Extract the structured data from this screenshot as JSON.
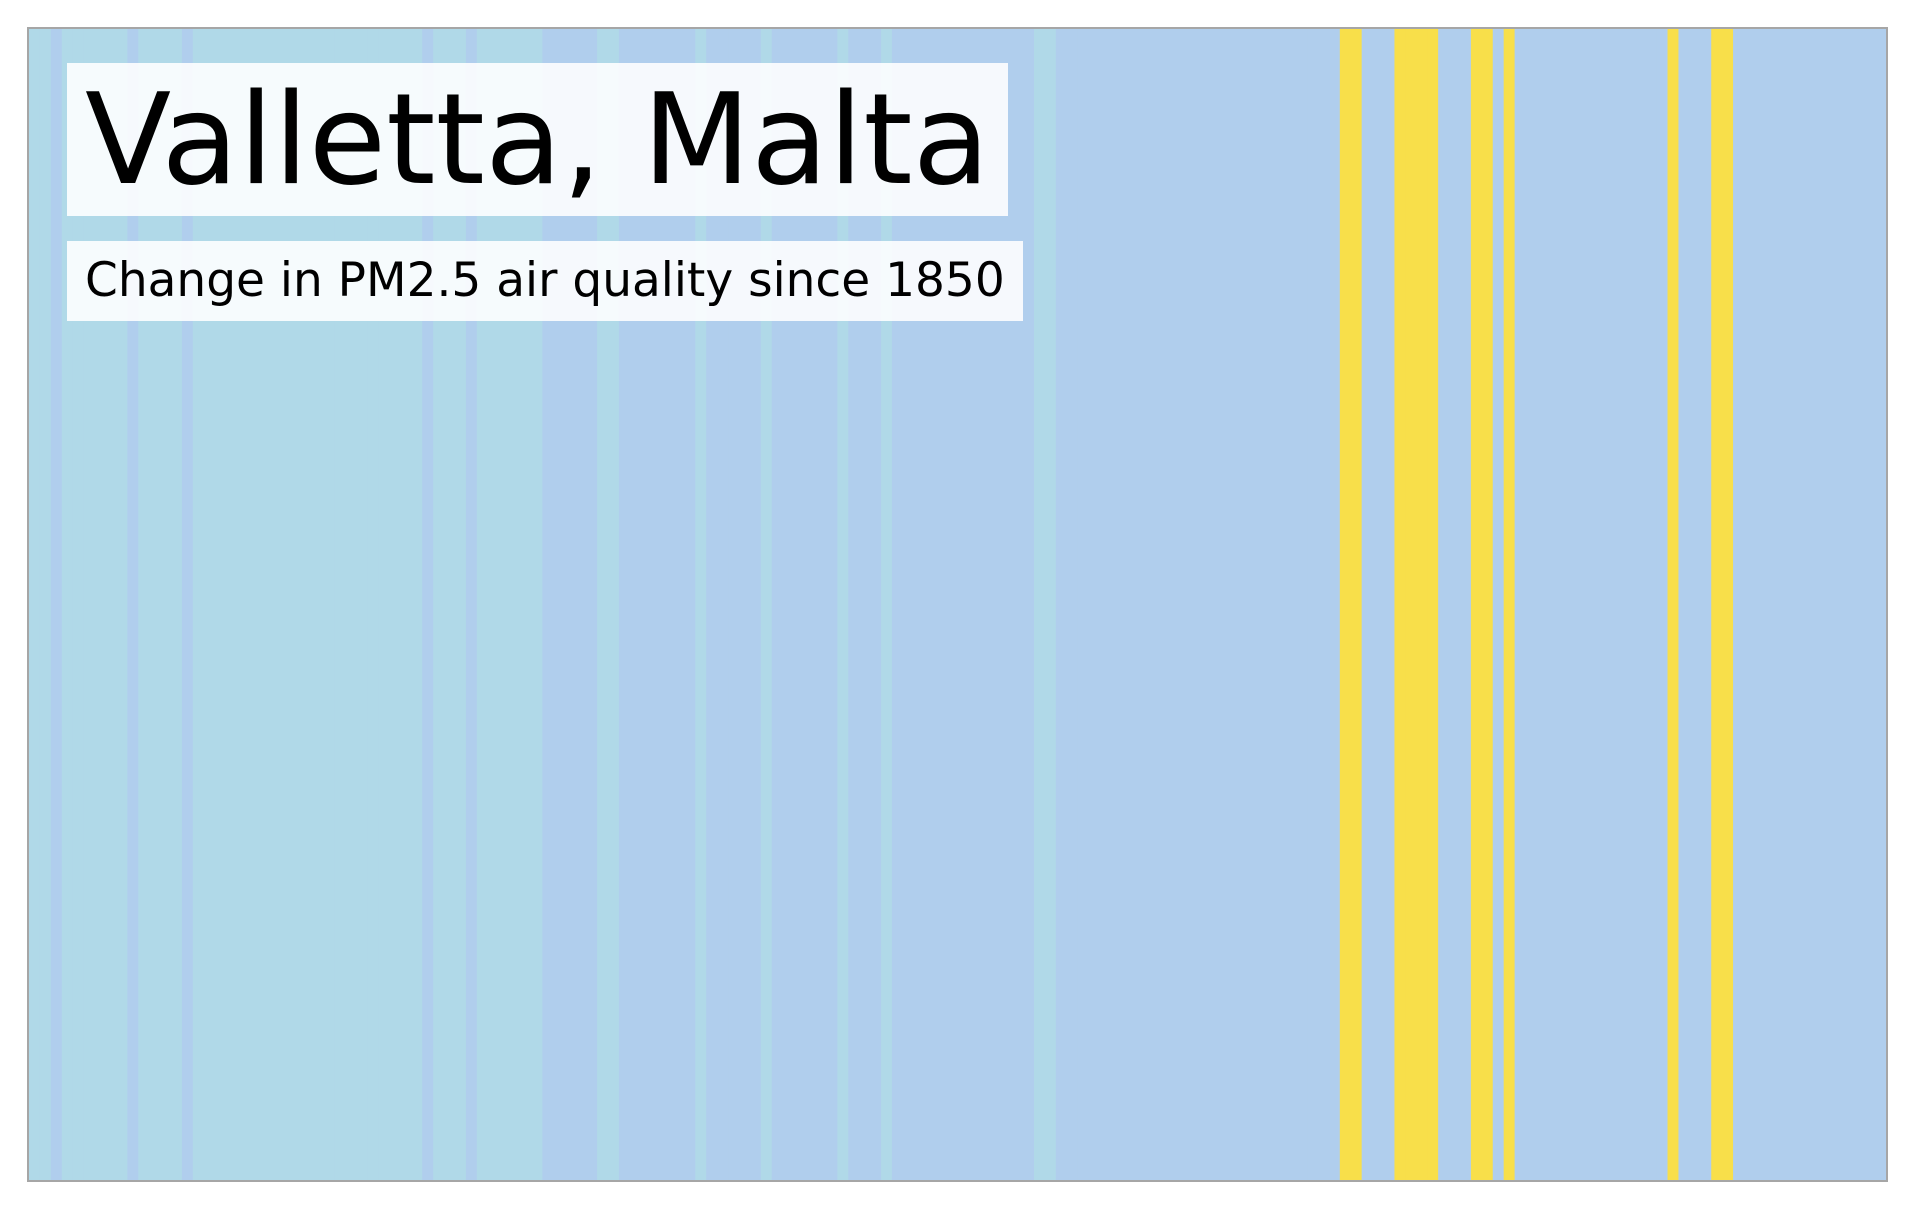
{
  "title": "Valletta, Malta",
  "subtitle": "Change in PM2.5 air quality since 1850",
  "chart_data": {
    "type": "heatmap",
    "title": "Valletta, Malta",
    "subtitle": "Change in PM2.5 air quality since 1850",
    "x_start": 1850,
    "x_end": 2020,
    "value_range": [
      0,
      2
    ],
    "palette": {
      "0": "#b0d9e8",
      "1": "#b0ceed",
      "2": "#f8df4a"
    },
    "values": [
      0,
      0,
      1,
      0,
      0,
      0,
      0,
      0,
      0,
      1,
      0,
      0,
      0,
      0,
      1,
      0,
      0,
      0,
      0,
      0,
      0,
      0,
      0,
      0,
      0,
      0,
      0,
      0,
      0,
      0,
      0,
      0,
      0,
      0,
      0,
      0,
      1,
      0,
      0,
      0,
      1,
      0,
      0,
      0,
      0,
      0,
      0,
      1,
      1,
      1,
      1,
      1,
      0,
      0,
      1,
      1,
      1,
      1,
      1,
      1,
      1,
      0,
      1,
      1,
      1,
      1,
      1,
      0,
      1,
      1,
      1,
      1,
      1,
      1,
      0,
      1,
      1,
      1,
      0,
      1,
      1,
      1,
      1,
      1,
      1,
      1,
      1,
      1,
      1,
      1,
      1,
      1,
      0,
      0,
      1,
      1,
      1,
      1,
      1,
      1,
      1,
      1,
      1,
      1,
      1,
      1,
      1,
      1,
      1,
      1,
      1,
      1,
      1,
      1,
      1,
      1,
      1,
      1,
      1,
      1,
      2,
      2,
      1,
      1,
      1,
      2,
      2,
      2,
      2,
      1,
      1,
      1,
      2,
      2,
      1,
      2,
      1,
      1,
      1,
      1,
      1,
      1,
      1,
      1,
      1,
      1,
      1,
      1,
      1,
      1,
      2,
      1,
      1,
      1,
      2,
      2,
      1,
      1,
      1,
      1,
      1,
      1,
      1,
      1,
      1,
      1,
      1,
      1,
      1,
      1
    ]
  }
}
